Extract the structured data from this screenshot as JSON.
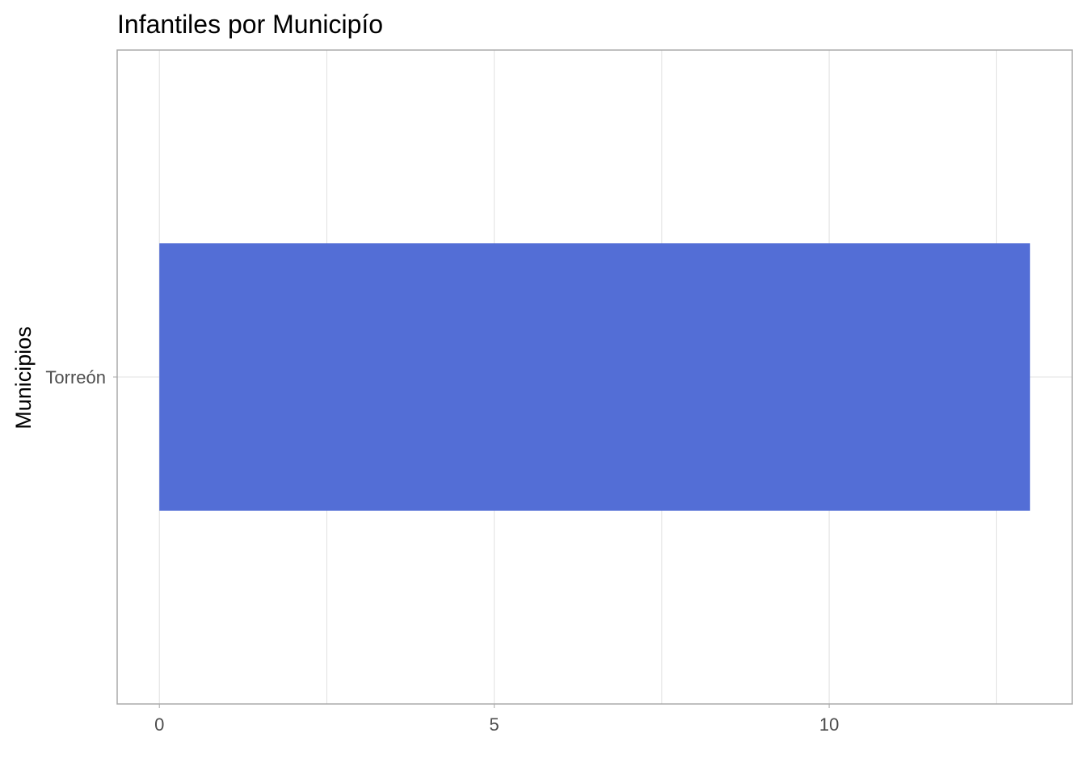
{
  "chart_data": {
    "type": "bar",
    "orientation": "horizontal",
    "title": "Infantiles por Municipío",
    "xlabel": "",
    "ylabel": "Municipios",
    "categories": [
      "Torreón"
    ],
    "series": [
      {
        "values": [
          13
        ]
      }
    ],
    "xlim": [
      -0.63,
      13.63
    ],
    "x_ticks": [
      "0",
      "5",
      "10"
    ],
    "x_tick_values": [
      0,
      5,
      10
    ],
    "x_minor_breaks": [
      2.5,
      7.5,
      12.5
    ],
    "grid": true,
    "legend": "none",
    "bar_color": "#536ED6",
    "grid_color": "#E0E0E0",
    "panel_border_color": "#AAAAAA"
  }
}
